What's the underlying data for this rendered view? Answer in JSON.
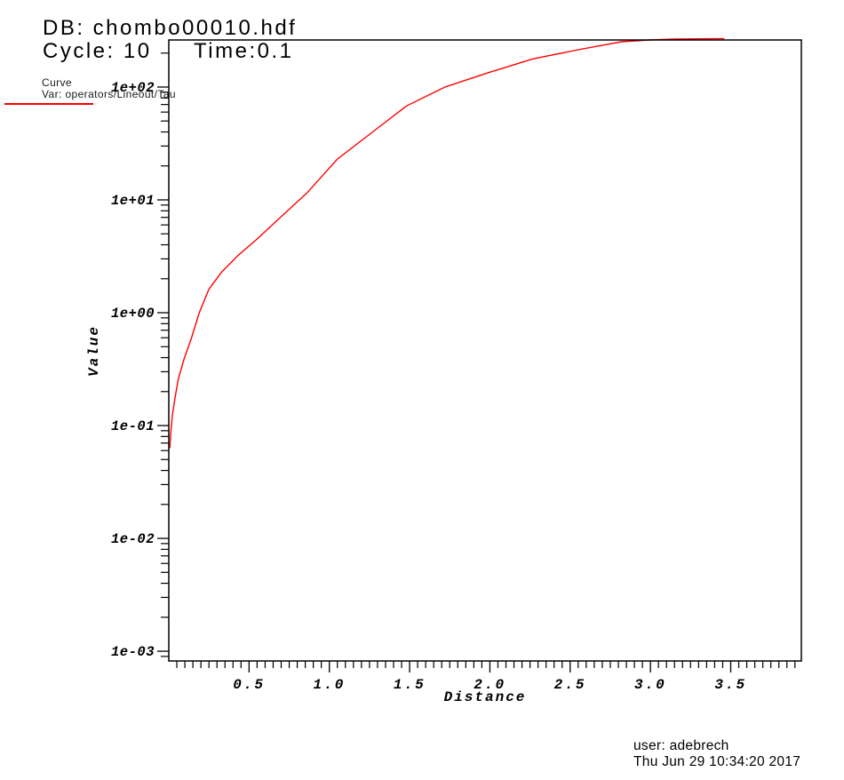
{
  "header": {
    "db_line": "DB: chombo00010.hdf",
    "cycle_label": "Cycle: 10",
    "time_label": "Time:0.1"
  },
  "legend": {
    "title": "Curve",
    "var_label": "Var: operators/Lineout/Tau",
    "line_color": "#ff0000"
  },
  "footer": {
    "user_line": "user: adebrech",
    "timestamp": "Thu Jun 29 10:34:20 2017"
  },
  "chart_data": {
    "type": "line",
    "title": "",
    "xlabel": "Distance",
    "ylabel": "Value",
    "x_scale": "linear",
    "y_scale": "log",
    "xlim": [
      0,
      3.94
    ],
    "ylim": [
      0.00082,
      261.3
    ],
    "grid": false,
    "legend_position": "top-left",
    "frame_color": "#000000",
    "x_ticks": {
      "major": [
        0.5,
        1.0,
        1.5,
        2.0,
        2.5,
        3.0,
        3.5
      ],
      "labels": [
        "0.5",
        "1.0",
        "1.5",
        "2.0",
        "2.5",
        "3.0",
        "3.5"
      ],
      "minor_step": 0.05
    },
    "y_ticks": {
      "major": [
        100,
        10,
        1,
        0.1,
        0.01,
        0.001
      ],
      "labels": [
        "1e+02",
        "1e+01",
        "1e+00",
        "1e-01",
        "1e-02",
        "1e-03"
      ],
      "minor_mantissas": [
        2,
        3,
        4,
        5,
        6,
        7,
        8,
        9
      ],
      "minor_decades": [
        -4,
        -3,
        -2,
        -1,
        0,
        1,
        2
      ]
    },
    "series": [
      {
        "name": "operators/Lineout/Tau",
        "color": "#ff0000",
        "points": [
          [
            0.006,
            0.063
          ],
          [
            0.012,
            0.086
          ],
          [
            0.022,
            0.123
          ],
          [
            0.04,
            0.18
          ],
          [
            0.06,
            0.26
          ],
          [
            0.095,
            0.39
          ],
          [
            0.14,
            0.59
          ],
          [
            0.19,
            1.0
          ],
          [
            0.25,
            1.62
          ],
          [
            0.33,
            2.3
          ],
          [
            0.43,
            3.2
          ],
          [
            0.55,
            4.5
          ],
          [
            0.69,
            6.9
          ],
          [
            0.86,
            11.5
          ],
          [
            1.05,
            23.0
          ],
          [
            1.27,
            40.0
          ],
          [
            1.48,
            68.0
          ],
          [
            1.72,
            100.0
          ],
          [
            1.99,
            134.0
          ],
          [
            2.27,
            178.0
          ],
          [
            2.55,
            214.0
          ],
          [
            2.82,
            252.0
          ],
          [
            2.99,
            261.5
          ],
          [
            3.15,
            266.0
          ],
          [
            3.46,
            271.0
          ]
        ]
      }
    ]
  }
}
